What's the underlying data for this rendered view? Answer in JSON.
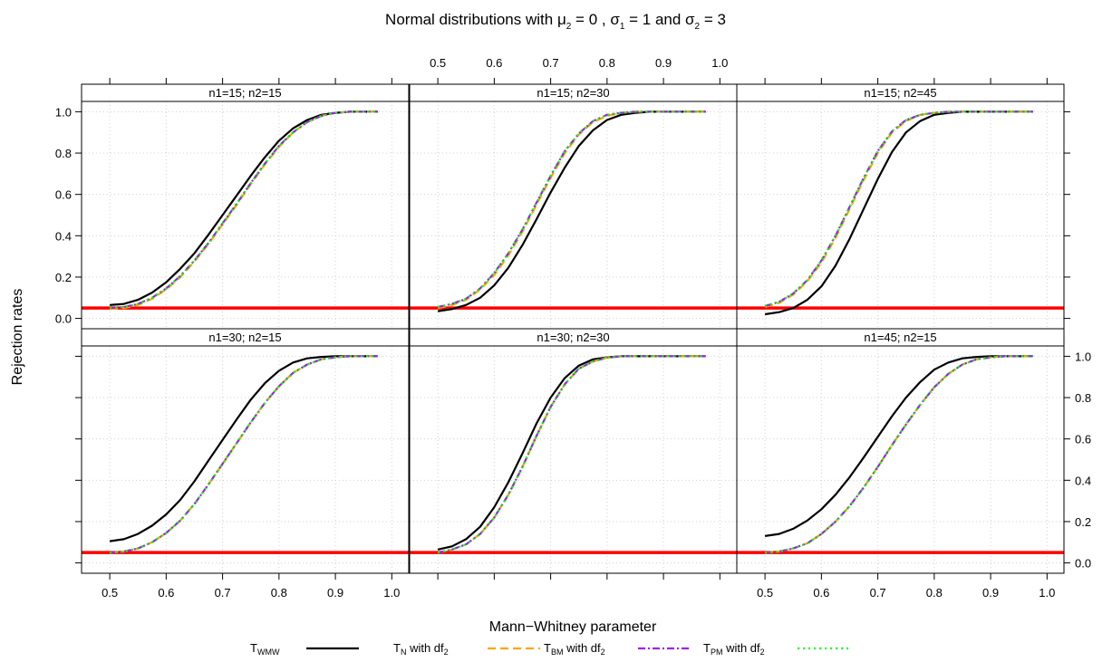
{
  "chart_data": {
    "type": "line",
    "title": {
      "prefix": "Normal distributions with ",
      "mu_symbol": "μ",
      "sigma_symbol": "σ",
      "equals": " = ",
      "and_word": " and ",
      "sep": " , ",
      "mu2": "0",
      "sigma1": "1",
      "sigma2": "3",
      "sub1": "1",
      "sub2": "2"
    },
    "xlabel": "Mann−Whitney parameter",
    "ylabel": "Rejection rates",
    "xlim": [
      0.45,
      1.03
    ],
    "ylim": [
      -0.05,
      1.05
    ],
    "x_ticks": [
      "0.5",
      "0.6",
      "0.7",
      "0.8",
      "0.9",
      "1.0"
    ],
    "y_ticks": [
      "0.0",
      "0.2",
      "0.4",
      "0.6",
      "0.8",
      "1.0"
    ],
    "grid": true,
    "reference_line": {
      "y": 0.05,
      "color": "#ff0000"
    },
    "legend_position": "bottom",
    "legend": [
      {
        "main": "T",
        "sub": "WMW",
        "suffix": "",
        "color": "#000000",
        "dash": "solid"
      },
      {
        "main": "T",
        "sub": "N",
        "suffix": " with df",
        "suffix_sub": "2",
        "color": "#ffa500",
        "dash": "dashed"
      },
      {
        "main": "T",
        "sub": "BM",
        "suffix": " with df",
        "suffix_sub": "2",
        "color": "#a020f0",
        "dash": "dotdash"
      },
      {
        "main": "T",
        "sub": "PM",
        "suffix": " with df",
        "suffix_sub": "2",
        "color": "#00ff00",
        "dash": "dotted"
      }
    ],
    "x": [
      0.5,
      0.525,
      0.55,
      0.575,
      0.6,
      0.625,
      0.65,
      0.675,
      0.7,
      0.725,
      0.75,
      0.775,
      0.8,
      0.825,
      0.85,
      0.875,
      0.9,
      0.925,
      0.95,
      0.975
    ],
    "panels": [
      {
        "label": "n1=15; n2=15",
        "series": [
          {
            "name": "T_WMW",
            "values": [
              0.065,
              0.07,
              0.09,
              0.125,
              0.175,
              0.24,
              0.315,
              0.405,
              0.5,
              0.595,
              0.69,
              0.78,
              0.86,
              0.92,
              0.96,
              0.985,
              0.995,
              1.0,
              1.0,
              1.0
            ]
          },
          {
            "name": "T_N",
            "values": [
              0.045,
              0.05,
              0.065,
              0.095,
              0.14,
              0.2,
              0.275,
              0.36,
              0.455,
              0.55,
              0.65,
              0.745,
              0.83,
              0.9,
              0.95,
              0.98,
              0.995,
              1.0,
              1.0,
              1.0
            ]
          },
          {
            "name": "T_BM",
            "values": [
              0.05,
              0.055,
              0.07,
              0.1,
              0.145,
              0.205,
              0.28,
              0.365,
              0.46,
              0.555,
              0.655,
              0.75,
              0.835,
              0.9,
              0.95,
              0.98,
              0.995,
              1.0,
              1.0,
              1.0
            ]
          },
          {
            "name": "T_PM",
            "values": [
              0.05,
              0.055,
              0.07,
              0.1,
              0.145,
              0.205,
              0.28,
              0.365,
              0.46,
              0.555,
              0.655,
              0.75,
              0.835,
              0.9,
              0.95,
              0.98,
              0.995,
              1.0,
              1.0,
              1.0
            ]
          }
        ]
      },
      {
        "label": "n1=15; n2=30",
        "series": [
          {
            "name": "T_WMW",
            "values": [
              0.035,
              0.045,
              0.065,
              0.1,
              0.16,
              0.245,
              0.355,
              0.48,
              0.61,
              0.73,
              0.835,
              0.91,
              0.96,
              0.985,
              0.995,
              1.0,
              1.0,
              1.0,
              1.0,
              1.0
            ]
          },
          {
            "name": "T_N",
            "values": [
              0.05,
              0.065,
              0.09,
              0.14,
              0.21,
              0.305,
              0.42,
              0.55,
              0.68,
              0.8,
              0.89,
              0.95,
              0.98,
              0.995,
              1.0,
              1.0,
              1.0,
              1.0,
              1.0,
              1.0
            ]
          },
          {
            "name": "T_BM",
            "values": [
              0.055,
              0.07,
              0.095,
              0.145,
              0.22,
              0.315,
              0.43,
              0.56,
              0.69,
              0.81,
              0.895,
              0.955,
              0.985,
              0.995,
              1.0,
              1.0,
              1.0,
              1.0,
              1.0,
              1.0
            ]
          },
          {
            "name": "T_PM",
            "values": [
              0.055,
              0.07,
              0.095,
              0.145,
              0.22,
              0.315,
              0.43,
              0.56,
              0.69,
              0.81,
              0.895,
              0.955,
              0.985,
              0.995,
              1.0,
              1.0,
              1.0,
              1.0,
              1.0,
              1.0
            ]
          }
        ]
      },
      {
        "label": "n1=15; n2=45",
        "series": [
          {
            "name": "T_WMW",
            "values": [
              0.02,
              0.03,
              0.05,
              0.09,
              0.155,
              0.255,
              0.385,
              0.53,
              0.675,
              0.805,
              0.9,
              0.955,
              0.985,
              0.995,
              1.0,
              1.0,
              1.0,
              1.0,
              1.0,
              1.0
            ]
          },
          {
            "name": "T_N",
            "values": [
              0.055,
              0.075,
              0.115,
              0.18,
              0.27,
              0.39,
              0.53,
              0.67,
              0.8,
              0.9,
              0.955,
              0.985,
              0.995,
              1.0,
              1.0,
              1.0,
              1.0,
              1.0,
              1.0,
              1.0
            ]
          },
          {
            "name": "T_BM",
            "values": [
              0.06,
              0.08,
              0.12,
              0.185,
              0.28,
              0.4,
              0.54,
              0.68,
              0.81,
              0.905,
              0.96,
              0.985,
              0.995,
              1.0,
              1.0,
              1.0,
              1.0,
              1.0,
              1.0,
              1.0
            ]
          },
          {
            "name": "T_PM",
            "values": [
              0.06,
              0.08,
              0.12,
              0.185,
              0.28,
              0.4,
              0.54,
              0.68,
              0.81,
              0.905,
              0.96,
              0.985,
              0.995,
              1.0,
              1.0,
              1.0,
              1.0,
              1.0,
              1.0,
              1.0
            ]
          }
        ]
      },
      {
        "label": "n1=30; n2=15",
        "series": [
          {
            "name": "T_WMW",
            "values": [
              0.105,
              0.115,
              0.14,
              0.18,
              0.235,
              0.305,
              0.395,
              0.495,
              0.595,
              0.695,
              0.79,
              0.87,
              0.93,
              0.97,
              0.99,
              0.997,
              1.0,
              1.0,
              1.0,
              1.0
            ]
          },
          {
            "name": "T_N",
            "values": [
              0.05,
              0.055,
              0.07,
              0.1,
              0.145,
              0.205,
              0.285,
              0.38,
              0.48,
              0.58,
              0.68,
              0.775,
              0.855,
              0.92,
              0.96,
              0.985,
              0.995,
              1.0,
              1.0,
              1.0
            ]
          },
          {
            "name": "T_BM",
            "values": [
              0.05,
              0.055,
              0.07,
              0.1,
              0.145,
              0.205,
              0.285,
              0.38,
              0.48,
              0.58,
              0.68,
              0.775,
              0.855,
              0.92,
              0.96,
              0.985,
              0.995,
              1.0,
              1.0,
              1.0
            ]
          },
          {
            "name": "T_PM",
            "values": [
              0.05,
              0.055,
              0.07,
              0.1,
              0.145,
              0.205,
              0.285,
              0.38,
              0.48,
              0.58,
              0.68,
              0.775,
              0.855,
              0.92,
              0.96,
              0.985,
              0.995,
              1.0,
              1.0,
              1.0
            ]
          }
        ]
      },
      {
        "label": "n1=30; n2=30",
        "series": [
          {
            "name": "T_WMW",
            "values": [
              0.065,
              0.08,
              0.115,
              0.175,
              0.27,
              0.39,
              0.53,
              0.675,
              0.8,
              0.895,
              0.955,
              0.985,
              0.995,
              1.0,
              1.0,
              1.0,
              1.0,
              1.0,
              1.0,
              1.0
            ]
          },
          {
            "name": "T_N",
            "values": [
              0.05,
              0.065,
              0.09,
              0.14,
              0.22,
              0.33,
              0.465,
              0.615,
              0.755,
              0.865,
              0.94,
              0.975,
              0.993,
              1.0,
              1.0,
              1.0,
              1.0,
              1.0,
              1.0,
              1.0
            ]
          },
          {
            "name": "T_BM",
            "values": [
              0.05,
              0.065,
              0.09,
              0.14,
              0.22,
              0.33,
              0.465,
              0.615,
              0.755,
              0.865,
              0.94,
              0.975,
              0.993,
              1.0,
              1.0,
              1.0,
              1.0,
              1.0,
              1.0,
              1.0
            ]
          },
          {
            "name": "T_PM",
            "values": [
              0.05,
              0.065,
              0.09,
              0.14,
              0.22,
              0.33,
              0.465,
              0.615,
              0.755,
              0.865,
              0.94,
              0.975,
              0.993,
              1.0,
              1.0,
              1.0,
              1.0,
              1.0,
              1.0,
              1.0
            ]
          }
        ]
      },
      {
        "label": "n1=45; n2=15",
        "series": [
          {
            "name": "T_WMW",
            "values": [
              0.13,
              0.14,
              0.165,
              0.205,
              0.26,
              0.33,
              0.415,
              0.51,
              0.61,
              0.71,
              0.8,
              0.875,
              0.935,
              0.97,
              0.99,
              0.997,
              1.0,
              1.0,
              1.0,
              1.0
            ]
          },
          {
            "name": "T_N",
            "values": [
              0.05,
              0.055,
              0.07,
              0.095,
              0.14,
              0.2,
              0.275,
              0.365,
              0.465,
              0.57,
              0.67,
              0.765,
              0.85,
              0.915,
              0.96,
              0.985,
              0.995,
              1.0,
              1.0,
              1.0
            ]
          },
          {
            "name": "T_BM",
            "values": [
              0.05,
              0.055,
              0.07,
              0.095,
              0.14,
              0.2,
              0.275,
              0.365,
              0.465,
              0.57,
              0.67,
              0.765,
              0.85,
              0.915,
              0.96,
              0.985,
              0.995,
              1.0,
              1.0,
              1.0
            ]
          },
          {
            "name": "T_PM",
            "values": [
              0.05,
              0.055,
              0.07,
              0.095,
              0.14,
              0.2,
              0.275,
              0.365,
              0.465,
              0.57,
              0.67,
              0.765,
              0.85,
              0.915,
              0.96,
              0.985,
              0.995,
              1.0,
              1.0,
              1.0
            ]
          }
        ]
      }
    ]
  }
}
